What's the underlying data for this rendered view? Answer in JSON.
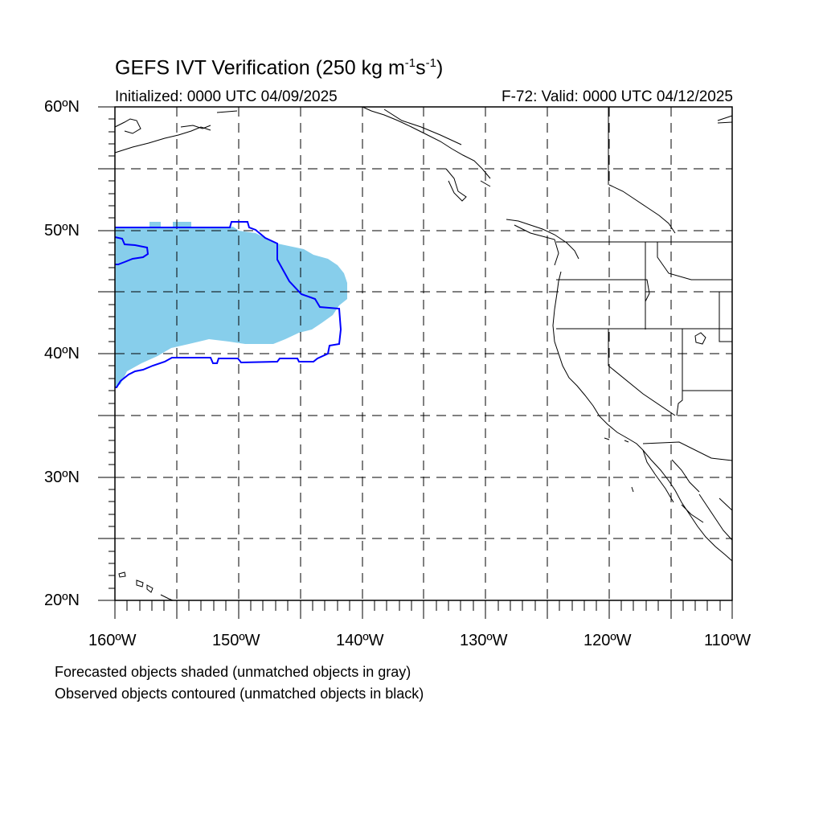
{
  "title": {
    "main": "GEFS IVT Verification (250 kg m",
    "exp1": "-1",
    "mid": "s",
    "exp2": "-1",
    "end": ")"
  },
  "initialized": "Initialized: 0000 UTC 04/09/2025",
  "valid": "F-72: Valid: 0000 UTC 04/12/2025",
  "map": {
    "lon_range": [
      -160,
      -110
    ],
    "lat_range": [
      20,
      60
    ],
    "lat_labels": [
      "60ºN",
      "50ºN",
      "40ºN",
      "30ºN",
      "20ºN"
    ],
    "lon_labels": [
      "160ºW",
      "150ºW",
      "140ºW",
      "130ºW",
      "120ºW",
      "110ºW"
    ],
    "gridlines": "dashed",
    "forecast_fill_color": "#87ceeb",
    "observed_contour_color": "#0000ff"
  },
  "notes": {
    "forecast": "Forecasted objects shaded (unmatched objects in gray)",
    "observed": "Observed objects contoured (unmatched objects in black)"
  }
}
